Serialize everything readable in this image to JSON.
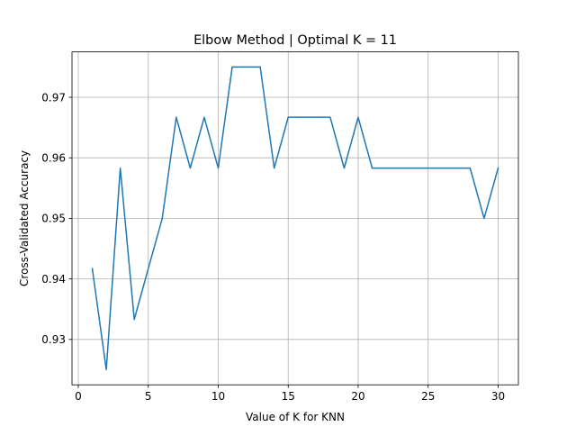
{
  "chart_data": {
    "type": "line",
    "title": "Elbow Method | Optimal K = 11",
    "xlabel": "Value of K for KNN",
    "ylabel": "Cross-Validated Accuracy",
    "xlim": [
      -0.45,
      31.45
    ],
    "ylim": [
      0.9225,
      0.9775
    ],
    "xticks": [
      0,
      5,
      10,
      15,
      20,
      25,
      30
    ],
    "xtick_labels": [
      "0",
      "5",
      "10",
      "15",
      "20",
      "25",
      "30"
    ],
    "yticks": [
      0.93,
      0.94,
      0.95,
      0.96,
      0.97
    ],
    "ytick_labels": [
      "0.93",
      "0.94",
      "0.95",
      "0.96",
      "0.97"
    ],
    "grid": true,
    "series": [
      {
        "color": "#1f77b4",
        "x": [
          1,
          2,
          3,
          4,
          5,
          6,
          7,
          8,
          9,
          10,
          11,
          12,
          13,
          14,
          15,
          16,
          17,
          18,
          19,
          20,
          21,
          22,
          23,
          24,
          25,
          26,
          27,
          28,
          29,
          30
        ],
        "y": [
          0.9417,
          0.925,
          0.9583,
          0.9333,
          0.9417,
          0.95,
          0.9667,
          0.9583,
          0.9667,
          0.9583,
          0.975,
          0.975,
          0.975,
          0.9583,
          0.9667,
          0.9667,
          0.9667,
          0.9667,
          0.9583,
          0.9667,
          0.9583,
          0.9583,
          0.9583,
          0.9583,
          0.9583,
          0.9583,
          0.9583,
          0.9583,
          0.95,
          0.9583
        ]
      }
    ]
  }
}
